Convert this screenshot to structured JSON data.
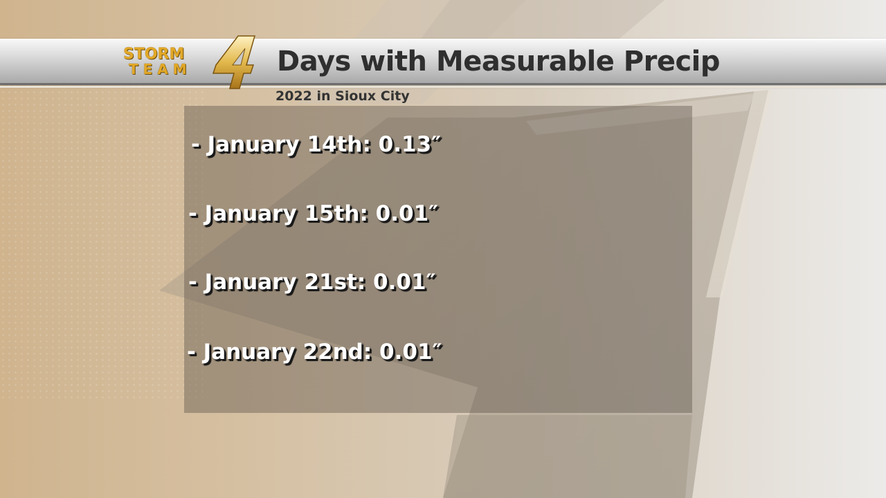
{
  "header": {
    "logo_top": "STORM",
    "logo_bottom": "TEAM",
    "logo_numeral": "4",
    "title": "Days with Measurable Precip",
    "subtitle": "2022 in Sioux City"
  },
  "entries": [
    {
      "text": "- January 14th: 0.13″"
    },
    {
      "text": "- January 15th: 0.01″"
    },
    {
      "text": "- January 21st: 0.01″"
    },
    {
      "text": "- January 22nd: 0.01″"
    }
  ],
  "colors": {
    "logo_gold": "#e2a827",
    "title_text": "#2f2f2f",
    "entry_text": "#ffffff"
  }
}
